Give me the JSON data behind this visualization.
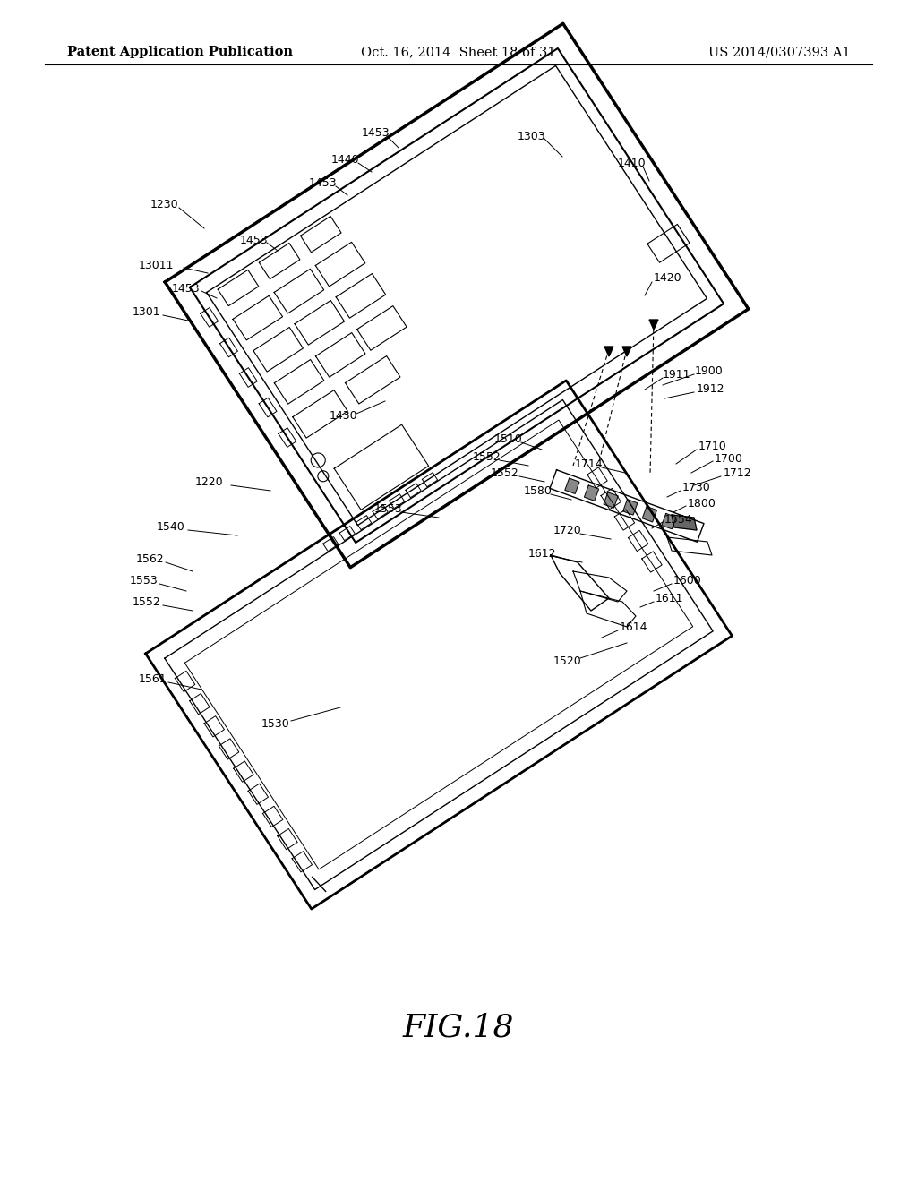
{
  "title": "FIG.18",
  "header_left": "Patent Application Publication",
  "header_center": "Oct. 16, 2014  Sheet 18 of 31",
  "header_right": "US 2014/0307393 A1",
  "background_color": "#ffffff",
  "line_color": "#000000",
  "text_color": "#000000",
  "header_fontsize": 10.5,
  "title_fontsize": 26,
  "label_fontsize": 9
}
